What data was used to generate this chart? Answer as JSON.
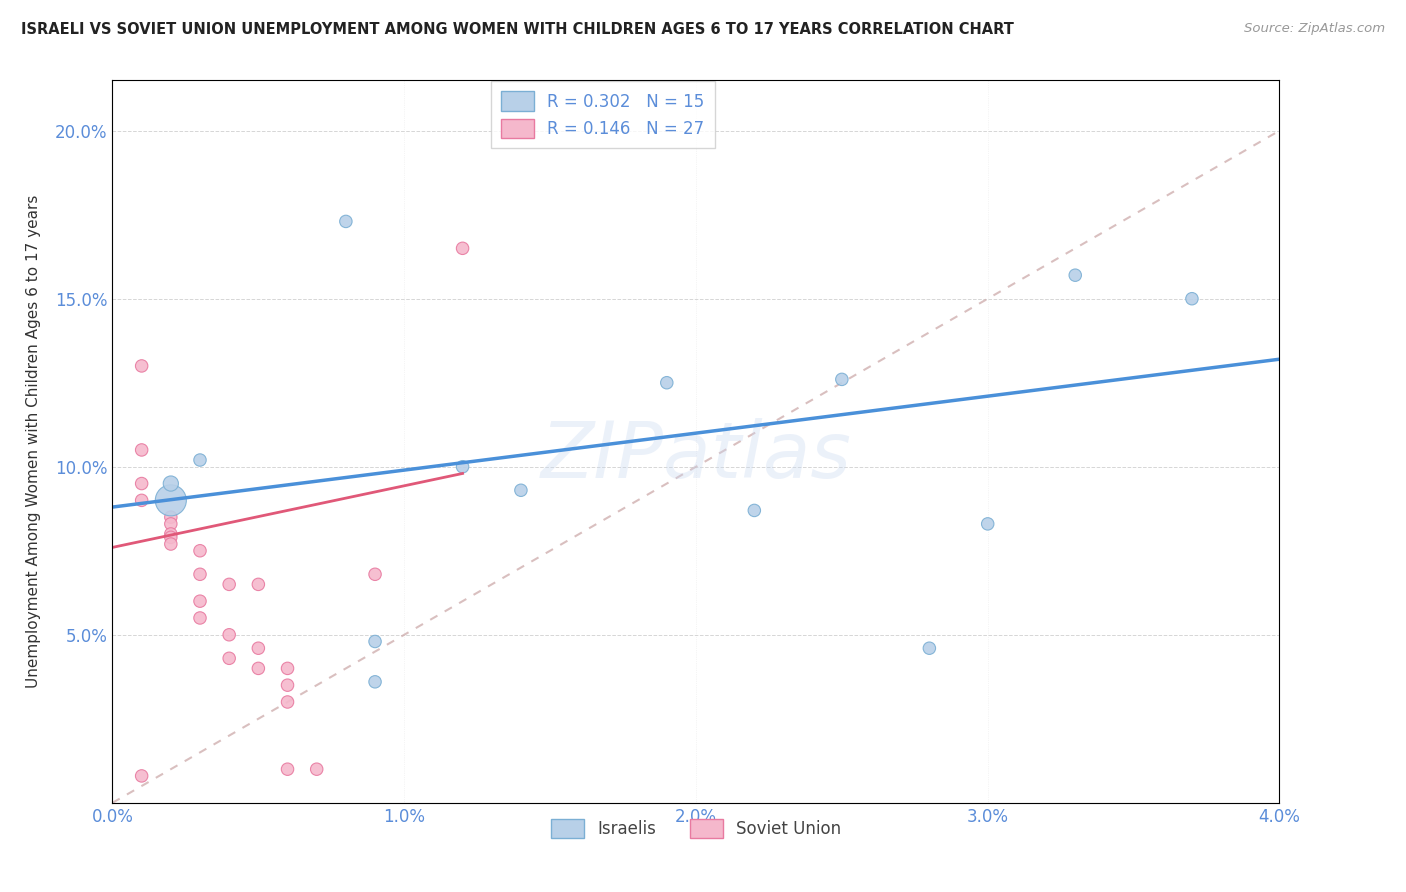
{
  "title": "ISRAELI VS SOVIET UNION UNEMPLOYMENT AMONG WOMEN WITH CHILDREN AGES 6 TO 17 YEARS CORRELATION CHART",
  "source": "Source: ZipAtlas.com",
  "ylabel": "Unemployment Among Women with Children Ages 6 to 17 years",
  "legend1_label": "R = 0.302   N = 15",
  "legend2_label": "R = 0.146   N = 27",
  "xlim": [
    0.0,
    0.04
  ],
  "ylim": [
    0.0,
    0.215
  ],
  "xticks": [
    0.0,
    0.01,
    0.02,
    0.03,
    0.04
  ],
  "yticks": [
    0.05,
    0.1,
    0.15,
    0.2
  ],
  "xticklabels": [
    "0.0%",
    "1.0%",
    "2.0%",
    "3.0%",
    "4.0%"
  ],
  "yticklabels": [
    "5.0%",
    "10.0%",
    "15.0%",
    "20.0%"
  ],
  "blue_color": "#b8d0e8",
  "blue_edge_color": "#7bafd4",
  "pink_color": "#f5b8cc",
  "pink_edge_color": "#e87aa0",
  "blue_line_color": "#4a90d9",
  "pink_line_color": "#e05878",
  "diag_line_color": "#d0b0b0",
  "background_color": "#ffffff",
  "watermark": "ZIPatlas",
  "israelis_x": [
    0.002,
    0.002,
    0.003,
    0.008,
    0.012,
    0.014,
    0.022,
    0.025,
    0.028,
    0.03,
    0.033,
    0.037,
    0.019,
    0.009,
    0.009
  ],
  "israelis_y": [
    0.09,
    0.095,
    0.102,
    0.173,
    0.1,
    0.093,
    0.087,
    0.126,
    0.046,
    0.083,
    0.157,
    0.15,
    0.125,
    0.048,
    0.036
  ],
  "israelis_size": [
    500,
    120,
    80,
    80,
    80,
    80,
    80,
    80,
    80,
    80,
    80,
    80,
    80,
    80,
    80
  ],
  "soviet_x": [
    0.001,
    0.001,
    0.001,
    0.001,
    0.002,
    0.002,
    0.002,
    0.002,
    0.002,
    0.003,
    0.003,
    0.003,
    0.003,
    0.004,
    0.004,
    0.004,
    0.005,
    0.005,
    0.005,
    0.006,
    0.006,
    0.006,
    0.006,
    0.007,
    0.009,
    0.012,
    0.001
  ],
  "soviet_y": [
    0.13,
    0.105,
    0.095,
    0.09,
    0.085,
    0.083,
    0.08,
    0.079,
    0.077,
    0.075,
    0.068,
    0.06,
    0.055,
    0.065,
    0.05,
    0.043,
    0.065,
    0.046,
    0.04,
    0.04,
    0.035,
    0.03,
    0.01,
    0.01,
    0.068,
    0.165,
    0.008
  ],
  "soviet_size": [
    80,
    80,
    80,
    80,
    80,
    80,
    80,
    80,
    80,
    80,
    80,
    80,
    80,
    80,
    80,
    80,
    80,
    80,
    80,
    80,
    80,
    80,
    80,
    80,
    80,
    80,
    80
  ],
  "blue_line_x0": 0.0,
  "blue_line_y0": 0.088,
  "blue_line_x1": 0.04,
  "blue_line_y1": 0.132,
  "pink_line_x0": 0.0,
  "pink_line_y0": 0.076,
  "pink_line_x1": 0.012,
  "pink_line_y1": 0.098
}
